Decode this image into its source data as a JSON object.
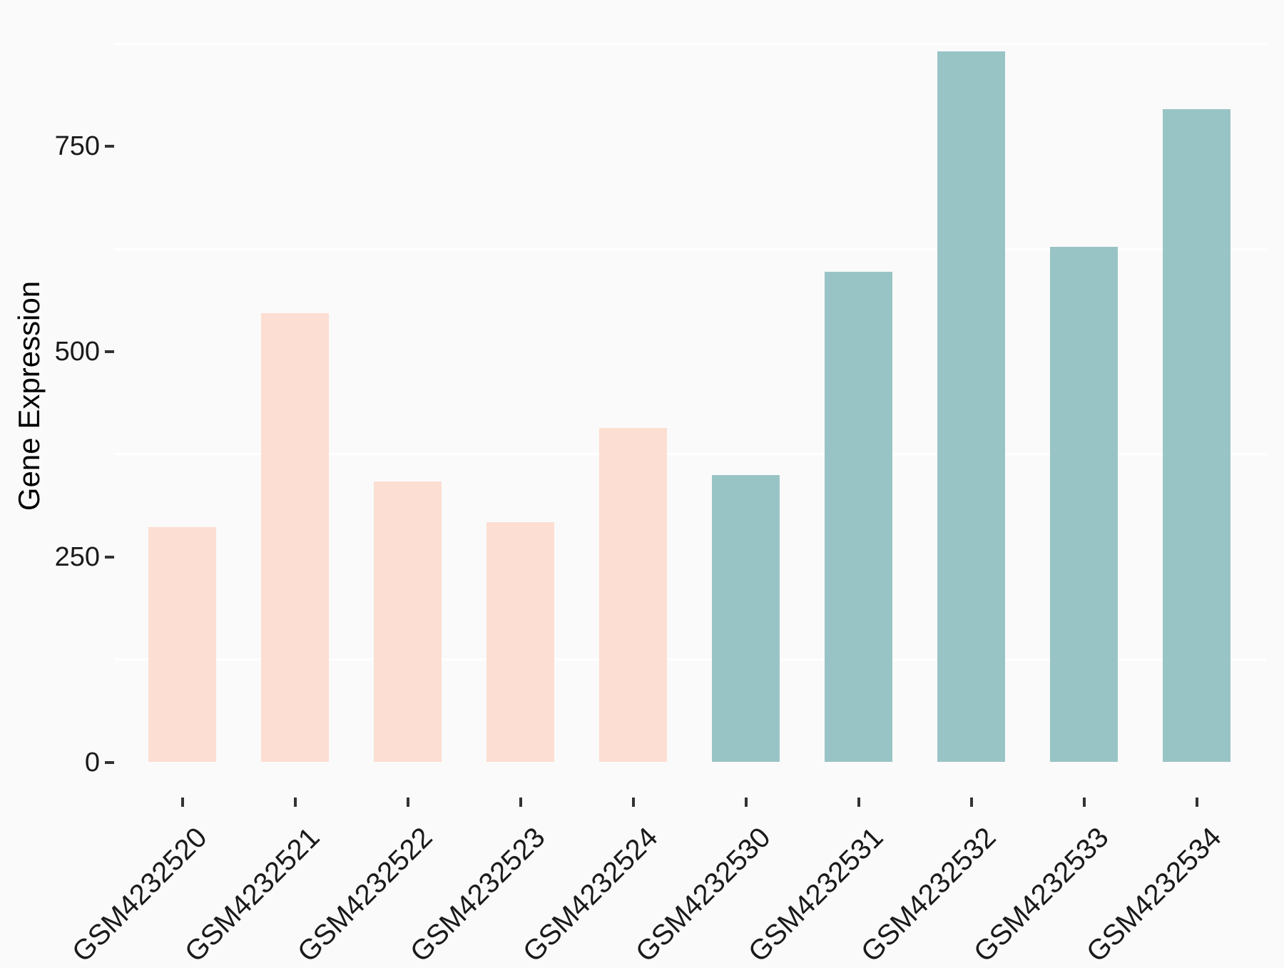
{
  "chart_data": {
    "type": "bar",
    "title": "",
    "xlabel": "",
    "ylabel": "Gene Expression",
    "categories": [
      "GSM4232520",
      "GSM4232521",
      "GSM4232522",
      "GSM4232523",
      "GSM4232524",
      "GSM4232530",
      "GSM4232531",
      "GSM4232532",
      "GSM4232533",
      "GSM4232534"
    ],
    "values": [
      286,
      547,
      342,
      292,
      407,
      350,
      597,
      866,
      628,
      795
    ],
    "bar_colors": [
      "#fcded2",
      "#fcded2",
      "#fcded2",
      "#fcded2",
      "#fcded2",
      "#99c4c6",
      "#99c4c6",
      "#99c4c6",
      "#99c4c6",
      "#99c4c6"
    ],
    "y_ticks": [
      0,
      250,
      500,
      750
    ],
    "y_tick_labels": [
      "0",
      "250",
      "500",
      "750"
    ],
    "y_minor_gridlines": [
      125,
      375,
      625,
      875
    ],
    "ylim": [
      0,
      909
    ],
    "grid": "white minor gridlines only, on light gray panel",
    "legend_position": "none",
    "x_label_rotation_deg": 45
  },
  "colors": {
    "background": "#fafafa",
    "gridline": "#ffffff",
    "bar_peach": "#fcded2",
    "bar_teal": "#99c4c6",
    "tick_mark": "#333333",
    "tick_text": "#1a1a1a",
    "axis_title": "#000000"
  }
}
